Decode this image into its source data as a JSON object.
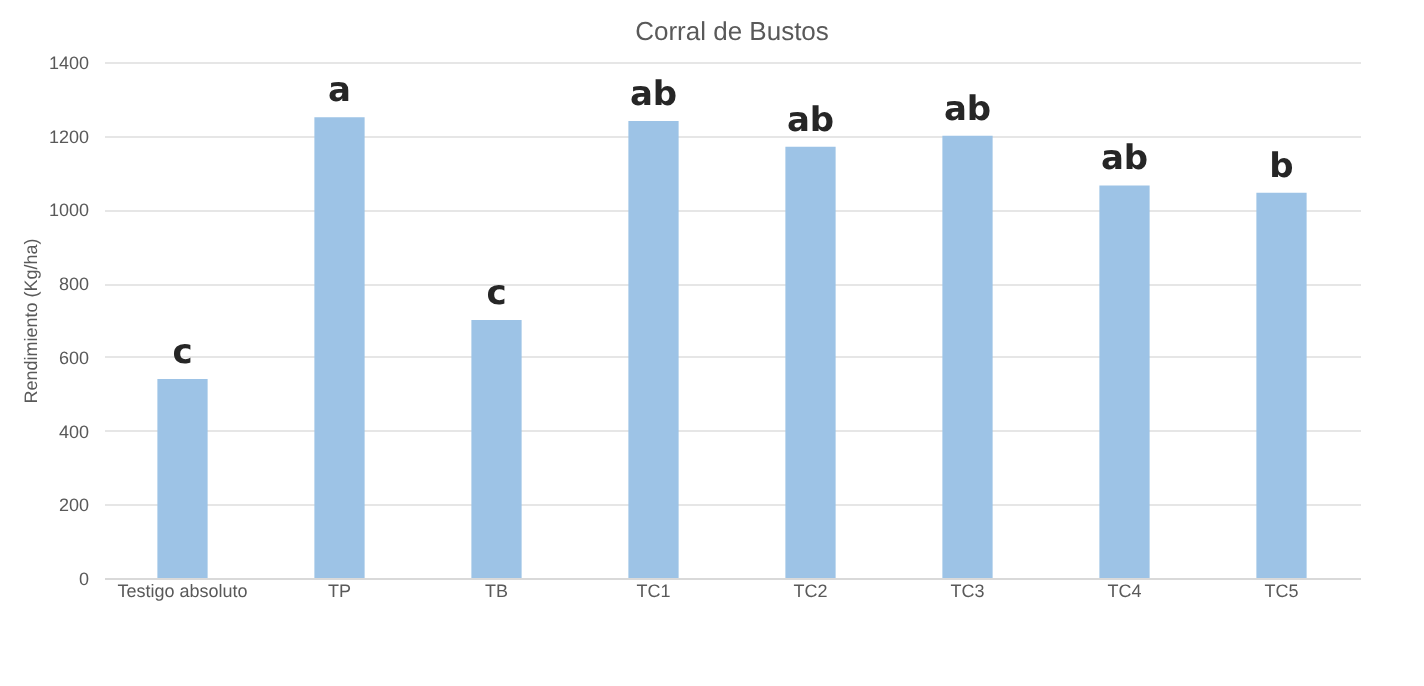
{
  "chart_data": {
    "type": "bar",
    "title": "Corral de Bustos",
    "ylabel": "Rendimiento (Kg/ha)",
    "categories": [
      "Testigo absoluto",
      "TP",
      "TB",
      "TC1",
      "TC2",
      "TC3",
      "TC4",
      "TC5"
    ],
    "values": [
      540,
      1250,
      700,
      1240,
      1170,
      1200,
      1065,
      1045
    ],
    "color": "#9dc3e6",
    "ylim": [
      0,
      1400
    ],
    "yticks": [
      0,
      200,
      400,
      600,
      800,
      1000,
      1200,
      1400
    ],
    "grid": "y",
    "annotations": [
      {
        "text": "c",
        "x": "Testigo absoluto",
        "y": 540
      },
      {
        "text": "a",
        "x": "TP",
        "y": 1250
      },
      {
        "text": "c",
        "x": "TB",
        "y": 700
      },
      {
        "text": "ab",
        "x": "TC1",
        "y": 1240
      },
      {
        "text": "ab",
        "x": "TC2",
        "y": 1170
      },
      {
        "text": "ab",
        "x": "TC3",
        "y": 1200
      },
      {
        "text": "ab",
        "x": "TC4",
        "y": 1065
      },
      {
        "text": "b",
        "x": "TC5",
        "y": 1045
      }
    ]
  }
}
